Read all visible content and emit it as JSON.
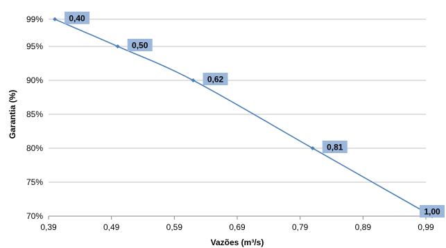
{
  "chart_data": {
    "type": "line",
    "title": "",
    "xlabel": "Vazões (m³/s)",
    "ylabel": "Garantia (%)",
    "xlim": [
      0.39,
      0.99
    ],
    "ylim": [
      70,
      100
    ],
    "x_ticks": [
      "0,39",
      "0,49",
      "0,59",
      "0,69",
      "0,79",
      "0,89",
      "0,99"
    ],
    "y_ticks": [
      {
        "value": 70,
        "label": "70%"
      },
      {
        "value": 75,
        "label": "75%"
      },
      {
        "value": 80,
        "label": "80%"
      },
      {
        "value": 85,
        "label": "85%"
      },
      {
        "value": 90,
        "label": "90%"
      },
      {
        "value": 95,
        "label": "95%"
      },
      {
        "value": 99,
        "label": "99%"
      }
    ],
    "grid": true,
    "legend": "none",
    "series": [
      {
        "x": [
          0.4,
          0.5,
          0.62,
          0.81,
          1.0
        ],
        "y": [
          99,
          95,
          90,
          80,
          70
        ],
        "labels": [
          "0,40",
          "0,50",
          "0,62",
          "0,81",
          "1,00"
        ]
      }
    ],
    "colors": {
      "line": "#4a7ebb",
      "label_bg": "#9bb7dc",
      "gridline": "#c0c0c0",
      "axis": "#868686"
    }
  }
}
